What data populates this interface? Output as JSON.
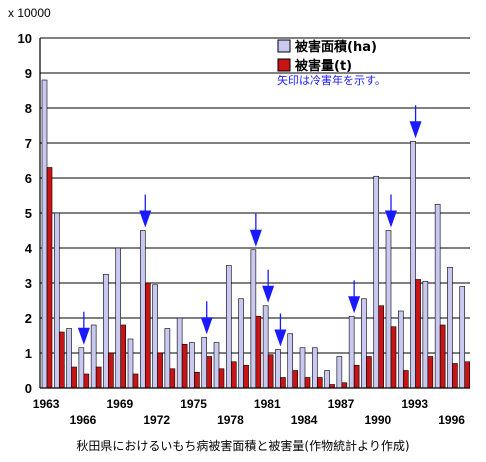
{
  "chart_data": {
    "type": "bar",
    "ylabel": "x 10000",
    "ylim": [
      0,
      10
    ],
    "yticks": [
      0,
      1,
      2,
      3,
      4,
      5,
      6,
      7,
      8,
      9,
      10
    ],
    "grid": "horizontal",
    "legend_position": "top-right",
    "categories": [
      "1963",
      "1964",
      "1965",
      "1966",
      "1967",
      "1968",
      "1969",
      "1970",
      "1971",
      "1972",
      "1973",
      "1974",
      "1975",
      "1976",
      "1977",
      "1978",
      "1979",
      "1980",
      "1981",
      "1982",
      "1983",
      "1984",
      "1985",
      "1986",
      "1987",
      "1988",
      "1989",
      "1990",
      "1991",
      "1992",
      "1993",
      "1994",
      "1995",
      "1996",
      "1997"
    ],
    "x_tick_labels_top": [
      "1963",
      "1969",
      "1975",
      "1981",
      "1987",
      "1993"
    ],
    "x_tick_labels_bottom": [
      "1966",
      "1972",
      "1978",
      "1984",
      "1990",
      "1996"
    ],
    "series": [
      {
        "name": "被害面積(ha)",
        "color": "#c8c8f0",
        "values": [
          8.8,
          5.0,
          1.7,
          1.15,
          1.8,
          3.25,
          4.0,
          1.4,
          4.5,
          2.95,
          1.7,
          2.0,
          1.3,
          1.45,
          1.3,
          3.5,
          2.55,
          3.95,
          2.35,
          1.1,
          1.55,
          1.15,
          1.15,
          0.5,
          0.9,
          2.05,
          2.55,
          6.05,
          4.5,
          2.2,
          7.05,
          3.05,
          5.25,
          3.45,
          2.9
        ]
      },
      {
        "name": "被害量(t)",
        "color": "#c81414",
        "values": [
          6.3,
          1.6,
          0.6,
          0.4,
          0.6,
          1.0,
          1.8,
          0.4,
          3.0,
          1.0,
          0.55,
          1.25,
          0.45,
          0.9,
          0.55,
          0.75,
          0.65,
          2.05,
          0.95,
          0.3,
          0.5,
          0.3,
          0.3,
          0.1,
          0.15,
          0.65,
          0.9,
          2.35,
          1.75,
          0.5,
          3.1,
          0.9,
          1.8,
          0.7,
          0.75
        ]
      }
    ],
    "annotation": "矢印は冷害年を示す。",
    "cold_damage_years": [
      "1966",
      "1971",
      "1976",
      "1980",
      "1981",
      "1982",
      "1988",
      "1991",
      "1993"
    ],
    "caption": "秋田県におけるいもち病被害面積と被害量(作物統計より作成)"
  }
}
